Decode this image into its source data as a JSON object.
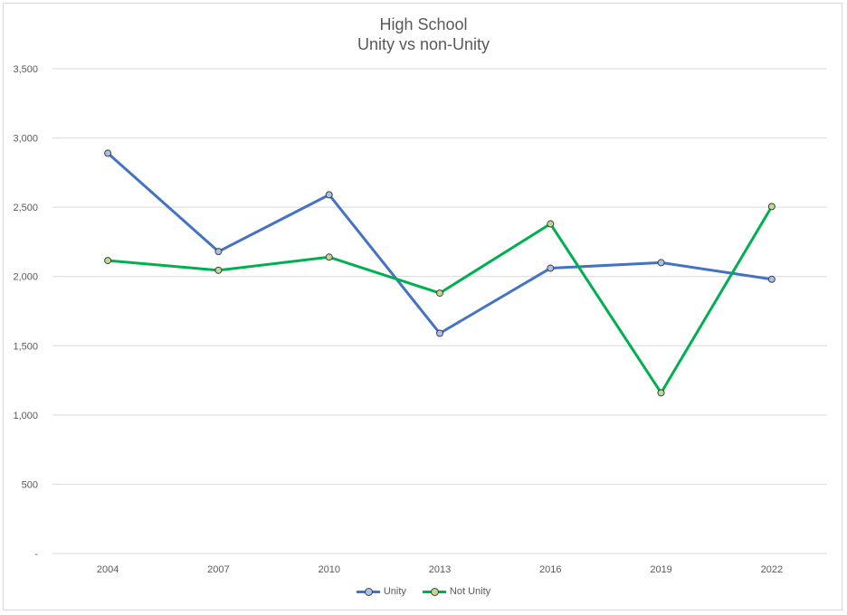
{
  "chart_data": {
    "type": "line",
    "title": "High School",
    "subtitle": "Unity vs non-Unity",
    "categories": [
      "2004",
      "2007",
      "2010",
      "2013",
      "2016",
      "2019",
      "2022"
    ],
    "ylim": [
      0,
      3500
    ],
    "yticks": [
      0,
      500,
      1000,
      1500,
      2000,
      2500,
      3000,
      3500
    ],
    "ytick_labels": [
      "-",
      "500",
      "1,000",
      "1,500",
      "2,000",
      "2,500",
      "3,000",
      "3,500"
    ],
    "grid": true,
    "legend": "bottom",
    "series": [
      {
        "name": "Unity",
        "color": "#4472c4",
        "marker_fill": "#a9c1e8",
        "values": [
          2890,
          2180,
          2590,
          1590,
          2060,
          2100,
          1980
        ]
      },
      {
        "name": "Not Unity",
        "color": "#00b050",
        "marker_fill": "#b9dc8f",
        "values": [
          2115,
          2045,
          2140,
          1880,
          2380,
          1160,
          2505
        ]
      }
    ]
  }
}
